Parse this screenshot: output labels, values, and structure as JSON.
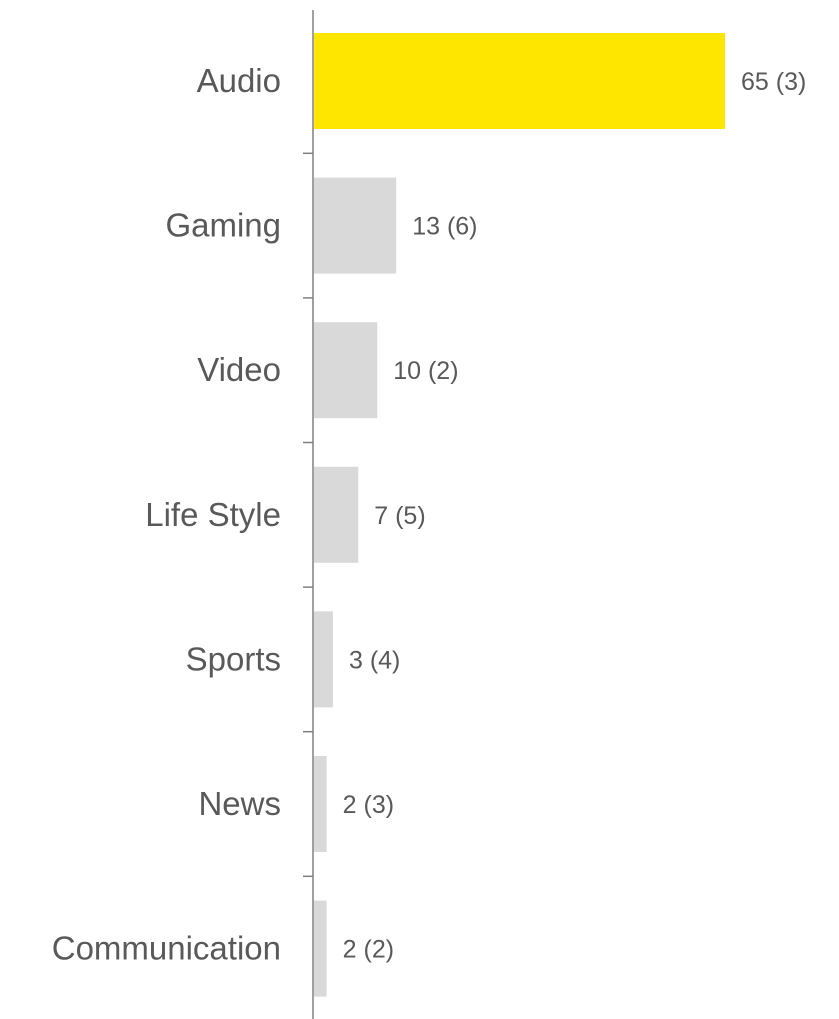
{
  "chart_data": {
    "type": "bar",
    "orientation": "horizontal",
    "title": "",
    "xlabel": "",
    "ylabel": "",
    "grid": false,
    "categories": [
      "Audio",
      "Gaming",
      "Video",
      "Life Style",
      "Sports",
      "News",
      "Communication"
    ],
    "values": [
      65,
      13,
      10,
      7,
      3,
      2,
      2
    ],
    "data_labels": [
      "65 (3)",
      "13 (6)",
      "10 (2)",
      "7 (5)",
      "3 (4)",
      "2 (3)",
      "2 (2)"
    ],
    "highlight_index": 0,
    "xlim": [
      0,
      65
    ],
    "colors": {
      "highlight": "#FFE600",
      "default": "#D9D9D9",
      "axis": "#808080",
      "text": "#595959"
    }
  }
}
